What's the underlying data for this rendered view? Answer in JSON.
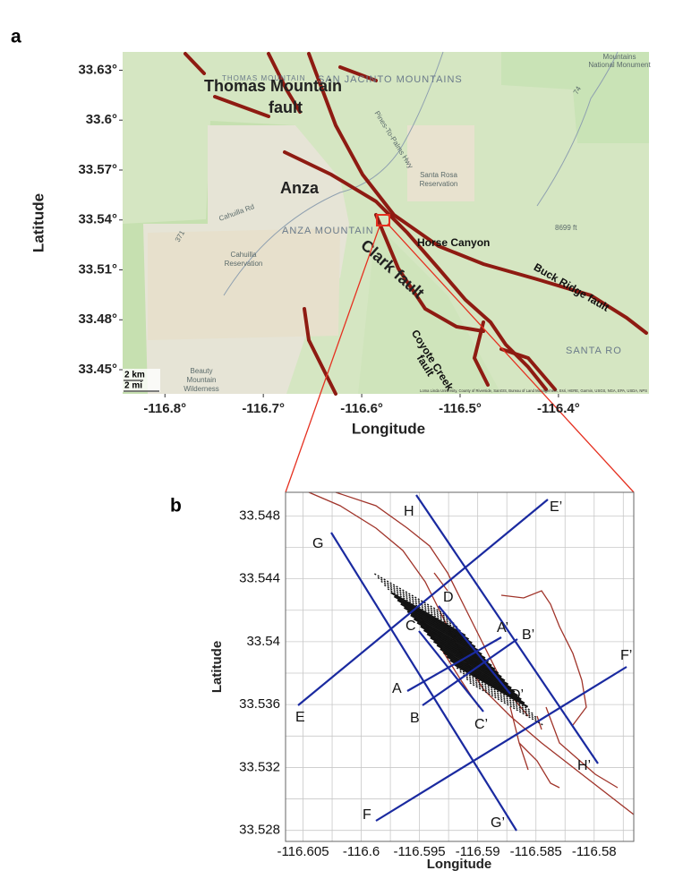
{
  "panel_a": {
    "label": "a",
    "x_axis_label": "Longitude",
    "y_axis_label": "Latitude",
    "xlim": [
      -116.843,
      -116.308
    ],
    "ylim": [
      33.4355,
      33.641
    ],
    "xticks": [
      {
        "value": -116.8,
        "label": "-116.8°"
      },
      {
        "value": -116.7,
        "label": "-116.7°"
      },
      {
        "value": -116.6,
        "label": "-116.6°"
      },
      {
        "value": -116.5,
        "label": "-116.5°"
      },
      {
        "value": -116.4,
        "label": "-116.4°"
      }
    ],
    "yticks": [
      {
        "value": 33.63,
        "label": "33.63°"
      },
      {
        "value": 33.6,
        "label": "33.6°"
      },
      {
        "value": 33.57,
        "label": "33.57°"
      },
      {
        "value": 33.54,
        "label": "33.54°"
      },
      {
        "value": 33.51,
        "label": "33.51°"
      },
      {
        "value": 33.48,
        "label": "33.48°"
      },
      {
        "value": 33.45,
        "label": "33.45°"
      }
    ],
    "fault_labels": {
      "thomas_mountain": [
        "Thomas Mountain",
        "fault"
      ],
      "anza": "Anza",
      "clark": "Clark fault",
      "horse_canyon": "Horse Canyon",
      "buck_ridge": "Buck Ridge fault",
      "coyote_creek": [
        "Coyote Creek",
        "fault"
      ]
    },
    "map_labels": {
      "san_jacinto": "SAN JACINTO MOUNTAINS",
      "anza_mountain": "ANZA MOUNTAIN",
      "thomas_mountain": "THOMAS MOUNTAIN",
      "cahuilla_reservation": [
        "Cahuilla",
        "Reservation"
      ],
      "santa_rosa_reservation": [
        "Santa Rosa",
        "Reservation"
      ],
      "highway": "Pines-To-Palms Hwy",
      "cahuilla_rd": "Cahuilla Rd",
      "route_371": "371",
      "route_74": "74",
      "elevation": "8699 ft",
      "monument": [
        "Mountains",
        "National Monument"
      ],
      "santa_ro": "SANTA RO",
      "beauty_mountain": [
        "Beauty",
        "Mountain",
        "Wilderness"
      ]
    },
    "scale_bar": [
      "2 km",
      "2 mi"
    ],
    "attribution": "Loma Linda University, County of Riverside, SanGIS, Bureau of Land Management, Esri, HERE, Garmin, USGS, NGA, EPA, USDA, NPS"
  },
  "panel_b": {
    "label": "b",
    "x_axis_label": "Longitude",
    "y_axis_label": "Latitude",
    "xlim": [
      -116.6065,
      -116.5766
    ],
    "ylim": [
      33.5273,
      33.5495
    ],
    "xticks": [
      -116.605,
      -116.6,
      -116.595,
      -116.59,
      -116.585,
      -116.58
    ],
    "yticks": [
      33.528,
      33.532,
      33.536,
      33.54,
      33.544,
      33.548
    ],
    "profile_labels": [
      "A",
      "A’",
      "B",
      "B’",
      "C",
      "C’",
      "D",
      "D’",
      "E",
      "E’",
      "F",
      "F’",
      "G",
      "G’",
      "H",
      "H’"
    ]
  }
}
